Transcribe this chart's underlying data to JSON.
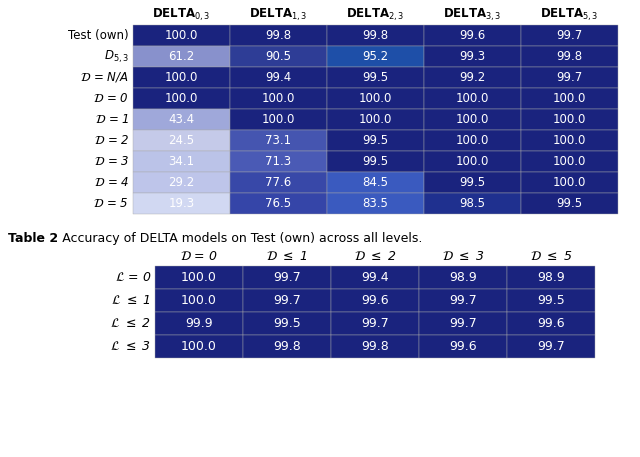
{
  "table1": {
    "col_header_texts": [
      "DELTA$_{0,3}$",
      "DELTA$_{1,3}$",
      "DELTA$_{2,3}$",
      "DELTA$_{3,3}$",
      "DELTA$_{5,3}$"
    ],
    "row_header_texts": [
      "Test (own)",
      "D$_{5,3}$",
      "$\\mathcal{D}$ = N/A",
      "$\\mathcal{D}$ = 0",
      "$\\mathcal{D}$ = 1",
      "$\\mathcal{D}$ = 2",
      "$\\mathcal{D}$ = 3",
      "$\\mathcal{D}$ = 4",
      "$\\mathcal{D}$ = 5"
    ],
    "values": [
      [
        100.0,
        99.8,
        99.8,
        99.6,
        99.7
      ],
      [
        61.2,
        90.5,
        95.2,
        99.3,
        99.8
      ],
      [
        100.0,
        99.4,
        99.5,
        99.2,
        99.7
      ],
      [
        100.0,
        100.0,
        100.0,
        100.0,
        100.0
      ],
      [
        43.4,
        100.0,
        100.0,
        100.0,
        100.0
      ],
      [
        24.5,
        73.1,
        99.5,
        100.0,
        100.0
      ],
      [
        34.1,
        71.3,
        99.5,
        100.0,
        100.0
      ],
      [
        29.2,
        77.6,
        84.5,
        99.5,
        100.0
      ],
      [
        19.3,
        76.5,
        83.5,
        98.5,
        99.5
      ]
    ],
    "cell_colors": [
      [
        "#1a237e",
        "#1a237e",
        "#1a237e",
        "#1a237e",
        "#1a237e"
      ],
      [
        "#8891cc",
        "#2e3d96",
        "#1e4fa8",
        "#1a237e",
        "#1a237e"
      ],
      [
        "#1a237e",
        "#1a237e",
        "#1a237e",
        "#1a237e",
        "#1a237e"
      ],
      [
        "#1a237e",
        "#1a237e",
        "#1a237e",
        "#1a237e",
        "#1a237e"
      ],
      [
        "#9fa8da",
        "#1a237e",
        "#1a237e",
        "#1a237e",
        "#1a237e"
      ],
      [
        "#c5cae9",
        "#4555b0",
        "#1a237e",
        "#1a237e",
        "#1a237e"
      ],
      [
        "#bbc3e8",
        "#4a5ab5",
        "#1a237e",
        "#1a237e",
        "#1a237e"
      ],
      [
        "#bec5ea",
        "#3848a8",
        "#3a5abf",
        "#1a237e",
        "#1a237e"
      ],
      [
        "#d1d8f2",
        "#3545a8",
        "#3a5abf",
        "#1f308f",
        "#1a237e"
      ]
    ]
  },
  "table2": {
    "col_header_texts": [
      "$\\mathcal{D}$ = 0",
      "$\\mathcal{D}$ $\\leq$ 1",
      "$\\mathcal{D}$ $\\leq$ 2",
      "$\\mathcal{D}$ $\\leq$ 3",
      "$\\mathcal{D}$ $\\leq$ 5"
    ],
    "row_header_texts": [
      "$\\mathcal{L}$ = 0",
      "$\\mathcal{L}$ $\\leq$ 1",
      "$\\mathcal{L}$ $\\leq$ 2",
      "$\\mathcal{L}$ $\\leq$ 3"
    ],
    "values": [
      [
        100.0,
        99.7,
        99.4,
        98.9,
        98.9
      ],
      [
        100.0,
        99.7,
        99.6,
        99.7,
        99.5
      ],
      [
        99.9,
        99.5,
        99.7,
        99.7,
        99.6
      ],
      [
        100.0,
        99.8,
        99.8,
        99.6,
        99.7
      ]
    ],
    "cell_color": "#1a237e",
    "caption_bold": "Table 2",
    "caption_rest": ": Accuracy of DELTA models on Test (own) across all levels."
  },
  "bg_color": "#ffffff"
}
